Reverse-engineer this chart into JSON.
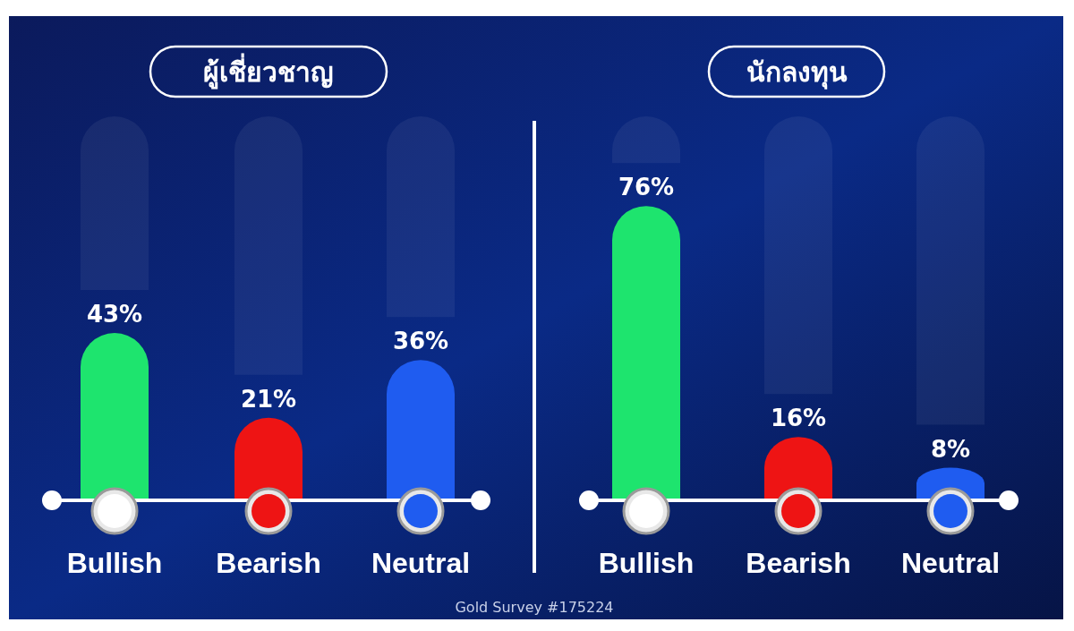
{
  "chart_data": [
    {
      "type": "bar",
      "title": "ผู้เชี่ยวชาญ",
      "categories": [
        "Bullish",
        "Bearish",
        "Neutral"
      ],
      "values": [
        43,
        21,
        36
      ],
      "colors": [
        "#1ee46e",
        "#ee1414",
        "#1f5cf0"
      ],
      "data_labels": true,
      "value_labels": [
        "43%",
        "21%",
        "36%"
      ],
      "annotations": [
        "Gold Survey #175224"
      ]
    },
    {
      "type": "bar",
      "title": "นักลงทุน",
      "categories": [
        "Bullish",
        "Bearish",
        "Neutral"
      ],
      "values": [
        76,
        16,
        8
      ],
      "colors": [
        "#1ee46e",
        "#ee1414",
        "#1f5cf0"
      ],
      "data_labels": true,
      "value_labels": [
        "76%",
        "16%",
        "8%"
      ]
    }
  ]
}
